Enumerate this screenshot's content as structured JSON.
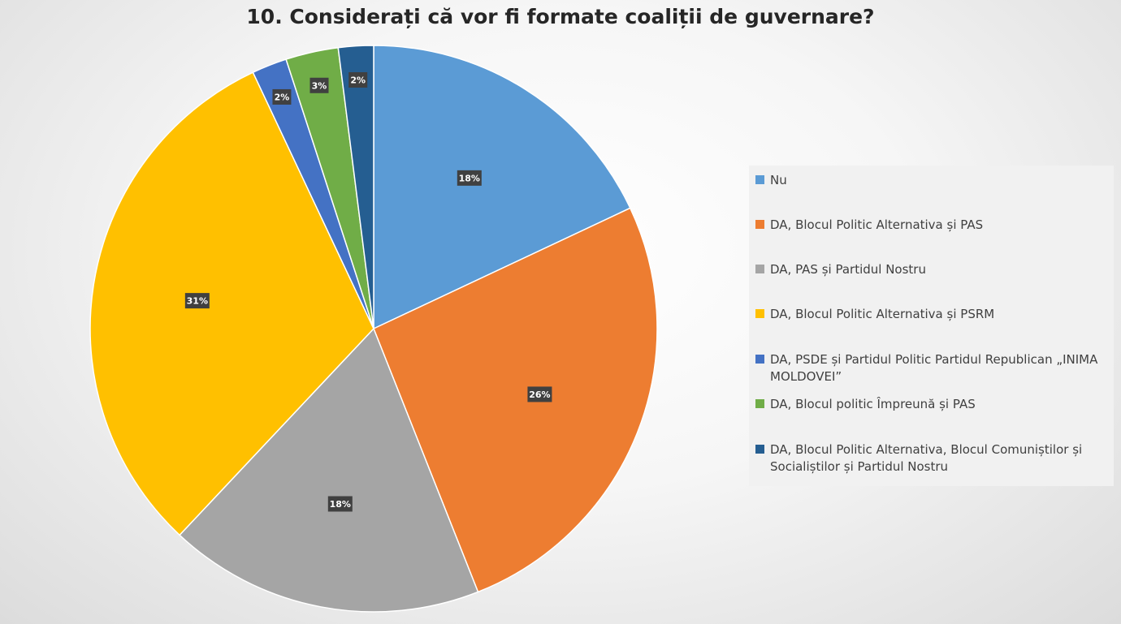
{
  "chart_data": {
    "type": "pie",
    "title": "10. Considerați că vor fi formate coaliții de guvernare?",
    "legend_position": "right",
    "slices": [
      {
        "name": "Nu",
        "value": 18,
        "label": "18%",
        "color": "#5b9bd5"
      },
      {
        "name": "DA, Blocul Politic Alternativa și PAS",
        "value": 26,
        "label": "26%",
        "color": "#ed7d31"
      },
      {
        "name": "DA, PAS și Partidul Nostru",
        "value": 18,
        "label": "18%",
        "color": "#a5a5a5"
      },
      {
        "name": "DA, Blocul Politic Alternativa și PSRM",
        "value": 31,
        "label": "31%",
        "color": "#ffc000"
      },
      {
        "name": "DA, PSDE și Partidul Politic Partidul Republican „INIMA MOLDOVEI”",
        "value": 2,
        "label": "2%",
        "color": "#4472c4"
      },
      {
        "name": "DA, Blocul politic Împreună și PAS",
        "value": 3,
        "label": "3%",
        "color": "#70ad47"
      },
      {
        "name": "DA, Blocul Politic Alternativa, Blocul Comuniștilor și Socialiștilor și Partidul Nostru",
        "value": 2,
        "label": "2%",
        "color": "#255e91"
      }
    ]
  }
}
